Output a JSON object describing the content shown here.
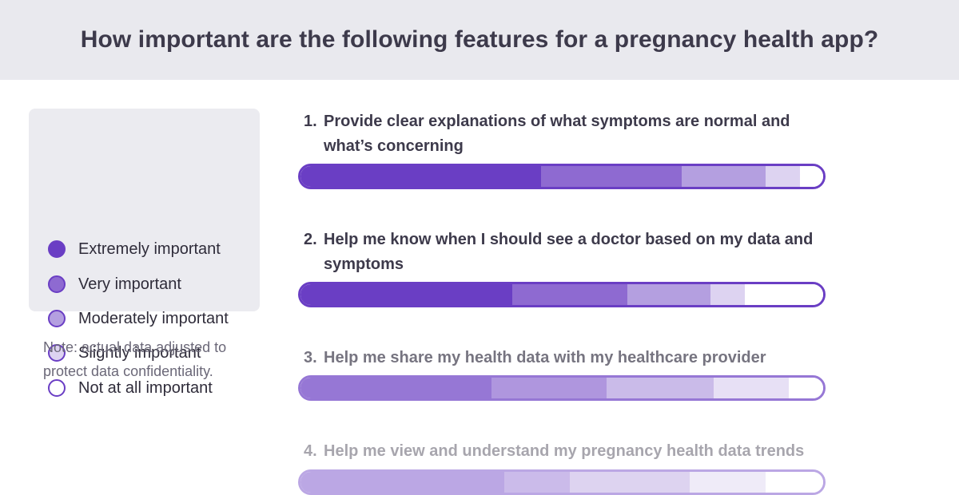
{
  "title": "How important are the following features for a pregnancy health app?",
  "legend": {
    "items": [
      {
        "label": "Extremely important",
        "color": "#6a3ec4"
      },
      {
        "label": "Very important",
        "color": "#8e6ad1"
      },
      {
        "label": "Moderately important",
        "color": "#b49fe0"
      },
      {
        "label": "Slightly important",
        "color": "#ddd3f1"
      },
      {
        "label": "Not at all important",
        "color": "#ffffff"
      }
    ]
  },
  "note": "Note: actual data adjusted to protect data confidentiality.",
  "chart_data": {
    "type": "bar",
    "orientation": "horizontal-stacked-100",
    "xlim": [
      0,
      100
    ],
    "series_names": [
      "Extremely important",
      "Very important",
      "Moderately important",
      "Slightly important",
      "Not at all important"
    ],
    "colors": [
      "#6a3ec4",
      "#8e6ad1",
      "#b49fe0",
      "#ddd3f1",
      "#ffffff"
    ],
    "rows": [
      {
        "number": "1.",
        "label": "Provide clear explanations of what symptoms are normal and what’s concerning",
        "values": [
          46,
          27,
          16,
          6.5,
          4.5
        ]
      },
      {
        "number": "2.",
        "label": "Help me know when I should see a doctor based on my data and symptoms",
        "values": [
          40.5,
          22,
          16,
          6.5,
          15
        ]
      },
      {
        "number": "3.",
        "label": "Help me share my health data with my healthcare provider",
        "values": [
          36.5,
          22,
          20.5,
          14.5,
          6.5
        ]
      },
      {
        "number": "4.",
        "label": "Help me view and understand my pregnancy health data trends",
        "values": [
          39,
          12.5,
          23,
          14.5,
          11
        ]
      }
    ]
  }
}
